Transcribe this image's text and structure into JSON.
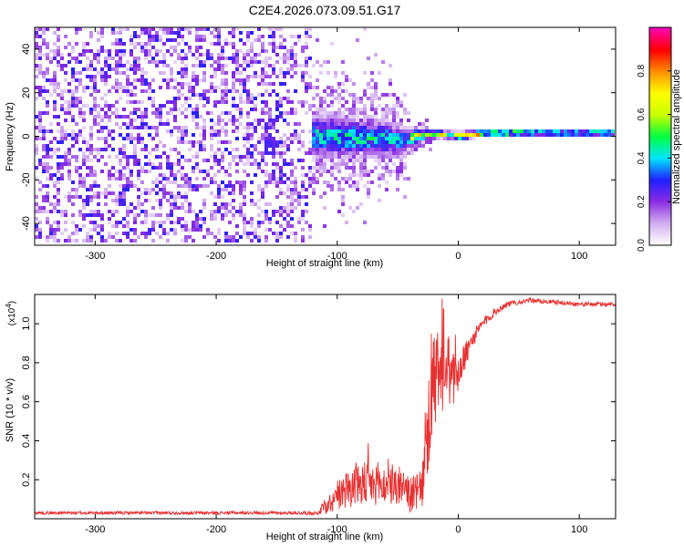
{
  "chart_data": [
    {
      "type": "heatmap",
      "title": "C2E4.2026.073.09.51.G17",
      "xlabel": "Height of straight line (km)",
      "ylabel": "Frequency (Hz)",
      "xlim": [
        -350,
        130
      ],
      "ylim": [
        -50,
        50
      ],
      "xticks": [
        -300,
        -200,
        -100,
        0,
        100
      ],
      "xtick_labels": [
        "-300",
        "-200",
        "-100",
        "0",
        "100"
      ],
      "yticks": [
        -40,
        -20,
        0,
        20,
        40
      ],
      "ytick_labels": [
        "-40",
        "-20",
        "0",
        "20",
        "40"
      ],
      "noise_region_x": [
        -350,
        -122
      ],
      "ridge": [
        {
          "x": -122,
          "f": 0.0,
          "spread": 5.0
        },
        {
          "x": -100,
          "f": 0.0,
          "spread": 5.5
        },
        {
          "x": -80,
          "f": -1.0,
          "spread": 5.0
        },
        {
          "x": -60,
          "f": -1.0,
          "spread": 4.5
        },
        {
          "x": -45,
          "f": -2.0,
          "spread": 3.0
        },
        {
          "x": -30,
          "f": 0.5,
          "spread": 1.5
        },
        {
          "x": -15,
          "f": 1.0,
          "spread": 1.0
        },
        {
          "x": 0,
          "f": 0.0,
          "spread": 1.0
        },
        {
          "x": 20,
          "f": 1.5,
          "spread": 0.8
        },
        {
          "x": 60,
          "f": 1.5,
          "spread": 0.6
        },
        {
          "x": 100,
          "f": 1.5,
          "spread": 0.6
        },
        {
          "x": 130,
          "f": 1.5,
          "spread": 0.6
        }
      ],
      "colorbar": {
        "label": "Normalized spectral amplitude",
        "range": [
          0,
          1
        ],
        "ticks": [
          0.0,
          0.2,
          0.4,
          0.6,
          0.8
        ],
        "tick_labels": [
          "0.0",
          "0.2",
          "0.4",
          "0.6",
          "0.8"
        ],
        "colors": [
          "#ffffff",
          "#d2aef0",
          "#8a2be2",
          "#2020ff",
          "#00e5ff",
          "#00ff40",
          "#c8ff00",
          "#ffff00",
          "#ff9000",
          "#ff0000",
          "#ff00b0"
        ]
      }
    },
    {
      "type": "line",
      "xlabel": "Height of straight line (km)",
      "ylabel": "SNR (10 * v/v)",
      "scale_label": "(x10",
      "scale_exponent": "4",
      "xlim": [
        -350,
        130
      ],
      "ylim": [
        0.0,
        1.15
      ],
      "xticks": [
        -300,
        -200,
        -100,
        0,
        100
      ],
      "xtick_labels": [
        "-300",
        "-200",
        "-100",
        "0",
        "100"
      ],
      "yticks": [
        0.2,
        0.4,
        0.6,
        0.8,
        1.0
      ],
      "ytick_labels": [
        "0.2",
        "0.4",
        "0.6",
        "0.8",
        "1.0"
      ],
      "series": [
        {
          "name": "SNR",
          "color": "#e83030",
          "x": [
            -350,
            -250,
            -150,
            -115,
            -110,
            -100,
            -90,
            -80,
            -70,
            -60,
            -50,
            -40,
            -30,
            -25,
            -20,
            -15,
            -10,
            -5,
            0,
            5,
            10,
            20,
            30,
            40,
            50,
            60,
            80,
            100,
            130
          ],
          "y": [
            0.03,
            0.03,
            0.03,
            0.03,
            0.07,
            0.12,
            0.16,
            0.18,
            0.17,
            0.17,
            0.16,
            0.12,
            0.15,
            0.45,
            0.7,
            0.72,
            0.75,
            0.72,
            0.75,
            0.82,
            0.9,
            1.0,
            1.06,
            1.1,
            1.11,
            1.12,
            1.11,
            1.1,
            1.1
          ],
          "noise": [
            0.008,
            0.008,
            0.008,
            0.01,
            0.05,
            0.08,
            0.1,
            0.12,
            0.1,
            0.1,
            0.1,
            0.09,
            0.1,
            0.22,
            0.25,
            0.22,
            0.18,
            0.16,
            0.1,
            0.08,
            0.05,
            0.03,
            0.02,
            0.015,
            0.012,
            0.012,
            0.012,
            0.012,
            0.012
          ]
        }
      ]
    }
  ]
}
